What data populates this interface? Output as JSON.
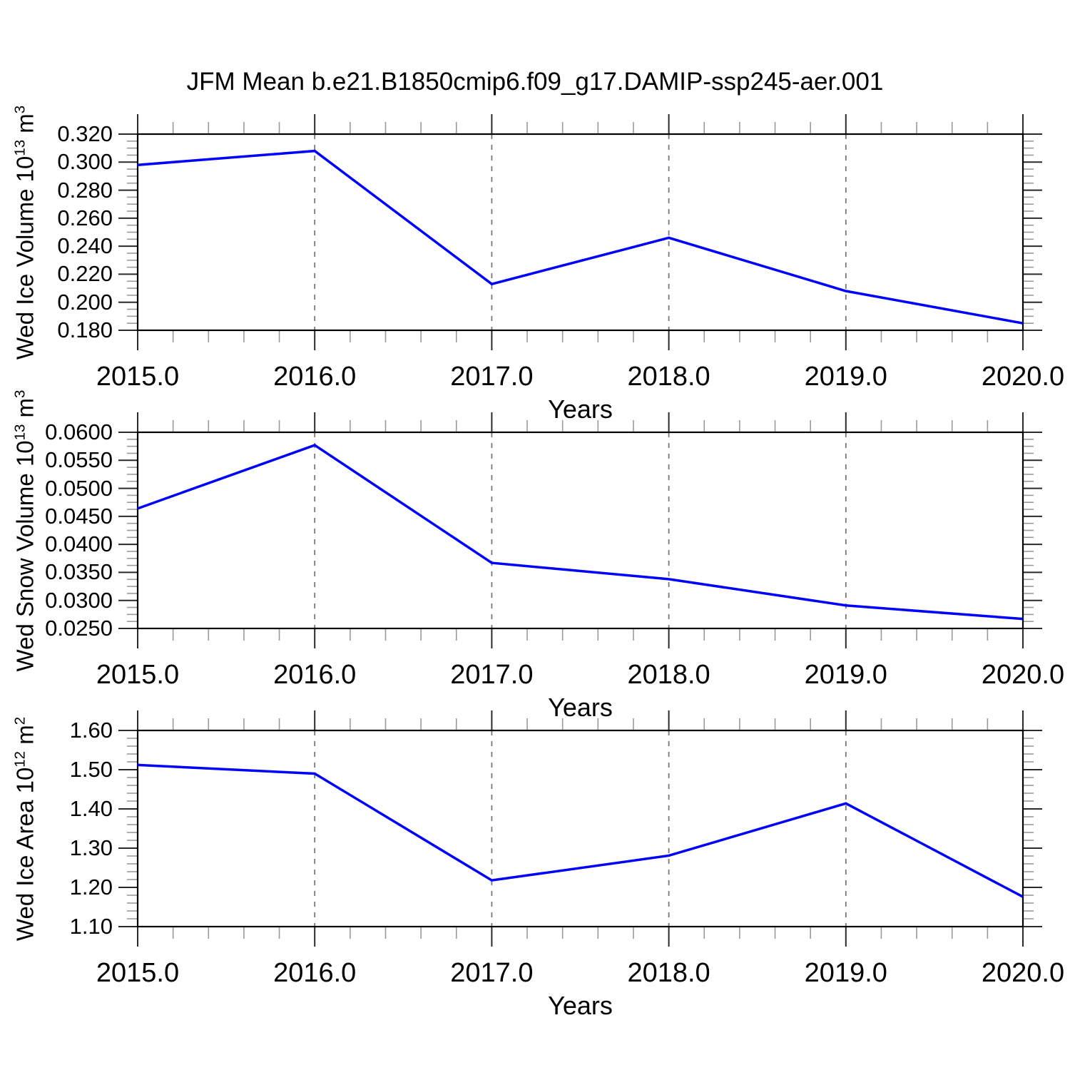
{
  "title": "JFM Mean b.e21.B1850cmip6.f09_g17.DAMIP-ssp245-aer.001",
  "colors": {
    "line": "#0000ff",
    "grid": "#787878",
    "axis": "#000000",
    "major_tick": "#2a2a2a",
    "minor_tick": "#9a9a9a"
  },
  "chart_data": [
    {
      "type": "line",
      "title": "",
      "ylabel": "Wed Ice Volume 10^13 m^3",
      "ylabel_rich": {
        "base": "Wed Ice Volume 10",
        "exp": "13",
        "unit": " m",
        "unit_exp": "3"
      },
      "xlabel": "Years",
      "x": [
        2015,
        2016,
        2017,
        2018,
        2019,
        2020
      ],
      "values": [
        0.298,
        0.308,
        0.213,
        0.246,
        0.208,
        0.185
      ],
      "ylim": [
        0.18,
        0.32
      ],
      "y_major_step": 0.02,
      "y_minor_step": 0.005,
      "y_tick_labels": [
        "0.180",
        "0.200",
        "0.220",
        "0.240",
        "0.260",
        "0.280",
        "0.300",
        "0.320"
      ],
      "xlim": [
        2015,
        2020
      ],
      "x_major_step": 1,
      "x_minor_step": 0.2,
      "x_tick_labels": [
        "2015.0",
        "2016.0",
        "2017.0",
        "2018.0",
        "2019.0",
        "2020.0"
      ],
      "gridlines_x": [
        2016,
        2017,
        2018,
        2019
      ],
      "grid": "vertical-dashed",
      "legend": "none",
      "line_color": "#0000ff"
    },
    {
      "type": "line",
      "title": "",
      "ylabel": "Wed Snow Volume 10^13 m^3",
      "ylabel_rich": {
        "base": "Wed Snow Volume 10",
        "exp": "13",
        "unit": " m",
        "unit_exp": "3"
      },
      "xlabel": "Years",
      "x": [
        2015,
        2016,
        2017,
        2018,
        2019,
        2020
      ],
      "values": [
        0.0464,
        0.0577,
        0.0367,
        0.0338,
        0.0291,
        0.0267
      ],
      "ylim": [
        0.025,
        0.06
      ],
      "y_major_step": 0.005,
      "y_minor_step": 0.00125,
      "y_tick_labels": [
        "0.0250",
        "0.0300",
        "0.0350",
        "0.0400",
        "0.0450",
        "0.0500",
        "0.0550",
        "0.0600"
      ],
      "xlim": [
        2015,
        2020
      ],
      "x_major_step": 1,
      "x_minor_step": 0.2,
      "x_tick_labels": [
        "2015.0",
        "2016.0",
        "2017.0",
        "2018.0",
        "2019.0",
        "2020.0"
      ],
      "gridlines_x": [
        2016,
        2017,
        2018,
        2019
      ],
      "grid": "vertical-dashed",
      "legend": "none",
      "line_color": "#0000ff"
    },
    {
      "type": "line",
      "title": "",
      "ylabel": "Wed Ice Area 10^12 m^2",
      "ylabel_rich": {
        "base": "Wed Ice Area 10",
        "exp": "12",
        "unit": " m",
        "unit_exp": "2"
      },
      "xlabel": "Years",
      "x": [
        2015,
        2016,
        2017,
        2018,
        2019,
        2020
      ],
      "values": [
        1.512,
        1.49,
        1.218,
        1.281,
        1.414,
        1.176
      ],
      "ylim": [
        1.1,
        1.6
      ],
      "y_major_step": 0.1,
      "y_minor_step": 0.02,
      "y_tick_labels": [
        "1.10",
        "1.20",
        "1.30",
        "1.40",
        "1.50",
        "1.60"
      ],
      "xlim": [
        2015,
        2020
      ],
      "x_major_step": 1,
      "x_minor_step": 0.2,
      "x_tick_labels": [
        "2015.0",
        "2016.0",
        "2017.0",
        "2018.0",
        "2019.0",
        "2020.0"
      ],
      "gridlines_x": [
        2016,
        2017,
        2018,
        2019
      ],
      "grid": "vertical-dashed",
      "legend": "none",
      "line_color": "#0000ff"
    }
  ]
}
